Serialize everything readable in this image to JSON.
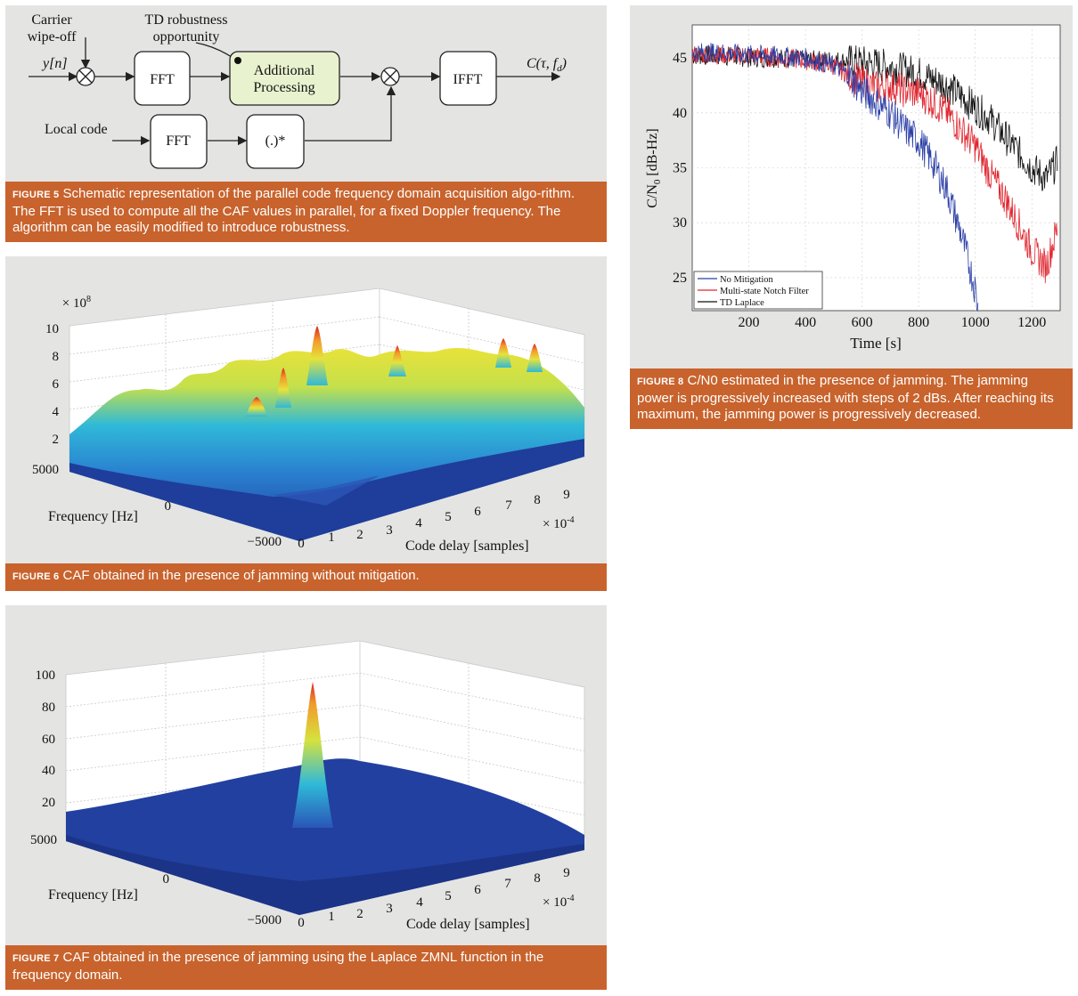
{
  "fig5": {
    "label": "FIGURE 5",
    "caption": "Schematic representation of the parallel code frequency domain acquisition algo-rithm. The FFT is used to compute all the CAF values in parallel, for a fixed Doppler frequency. The algorithm can be easily modified to introduce robustness.",
    "carrier1": "Carrier",
    "carrier2": "wipe-off",
    "td1": "TD robustness",
    "td2": "opportunity",
    "input": "y[n]",
    "fft1": "FFT",
    "add1": "Additional",
    "add2": "Processing",
    "ifft": "IFFT",
    "output": "C(τ, f",
    "output_sub": "d",
    "local_code": "Local code",
    "fft2": "FFT",
    "conj": "(.)*"
  },
  "fig6": {
    "label": "FIGURE 6",
    "caption": "CAF obtained in the presence of jamming without mitigation.",
    "zscale": "× 10",
    "zscale_exp": "8",
    "zticks": [
      "10",
      "8",
      "6",
      "4",
      "2"
    ],
    "yticks": [
      "5000",
      "0",
      "−5000"
    ],
    "ylabel": "Frequency [Hz]",
    "xticks": [
      "0",
      "1",
      "2",
      "3",
      "4",
      "5",
      "6",
      "7",
      "8",
      "9"
    ],
    "xscale": "× 10",
    "xscale_exp": "-4",
    "xlabel": "Code delay [samples]"
  },
  "fig7": {
    "label": "FIGURE 7",
    "caption": "CAF obtained in the presence of jamming using the Laplace ZMNL function in the frequency domain.",
    "zticks": [
      "100",
      "80",
      "60",
      "40",
      "20"
    ],
    "yticks": [
      "5000",
      "0",
      "−5000"
    ],
    "ylabel": "Frequency [Hz]",
    "xticks": [
      "0",
      "1",
      "2",
      "3",
      "4",
      "5",
      "6",
      "7",
      "8",
      "9"
    ],
    "xscale": "× 10",
    "xscale_exp": "-4",
    "xlabel": "Code delay [samples]"
  },
  "fig8": {
    "label": "FIGURE 8",
    "caption": "C/N0 estimated in the presence of jamming. The jamming power is progressively increased with steps of 2 dBs. After reaching its maximum, the jamming power is progressively decreased.",
    "chart_data": {
      "type": "line",
      "xlabel": "Time [s]",
      "ylabel": "C/N0 [dB-Hz]",
      "xlim": [
        0,
        1300
      ],
      "ylim": [
        22,
        48
      ],
      "xticks": [
        200,
        400,
        600,
        800,
        1000,
        1200
      ],
      "yticks": [
        25,
        30,
        35,
        40,
        45
      ],
      "legend_position": "bottom-left",
      "series": [
        {
          "name": "No Mitigation",
          "color": "#2b3fa6",
          "x": [
            0,
            100,
            200,
            300,
            400,
            500,
            550,
            600,
            650,
            700,
            750,
            800,
            850,
            900,
            950,
            1000,
            1010
          ],
          "y": [
            45.5,
            45.5,
            45.3,
            45.2,
            45,
            44.3,
            43.5,
            42,
            41,
            40,
            38.5,
            37.5,
            35.5,
            33,
            29,
            24,
            22
          ]
        },
        {
          "name": "Multi-state Notch Filter",
          "color": "#e0262f",
          "x": [
            0,
            100,
            200,
            300,
            400,
            500,
            550,
            600,
            650,
            700,
            750,
            800,
            850,
            900,
            950,
            1000,
            1050,
            1100,
            1150,
            1200,
            1250,
            1290
          ],
          "y": [
            45.3,
            45.3,
            45.2,
            45,
            44.8,
            44.3,
            43.5,
            42.8,
            42.3,
            42.5,
            42,
            41.8,
            41,
            40,
            38.5,
            37,
            34.5,
            32.5,
            30,
            27.5,
            26,
            29.5
          ]
        },
        {
          "name": "TD Laplace",
          "color": "#111111",
          "x": [
            0,
            100,
            200,
            300,
            400,
            500,
            600,
            700,
            800,
            900,
            1000,
            1050,
            1100,
            1150,
            1200,
            1250,
            1290
          ],
          "y": [
            45.2,
            45.2,
            45,
            45,
            44.8,
            44.8,
            44.6,
            44.2,
            43.6,
            42.5,
            40.5,
            39.5,
            38,
            36.5,
            35,
            34,
            35.5
          ]
        }
      ]
    }
  },
  "colors": {
    "caption_bg": "#c8632d",
    "panel_bg": "#e4e4e3",
    "proc_fill": "#e9f2cf"
  }
}
